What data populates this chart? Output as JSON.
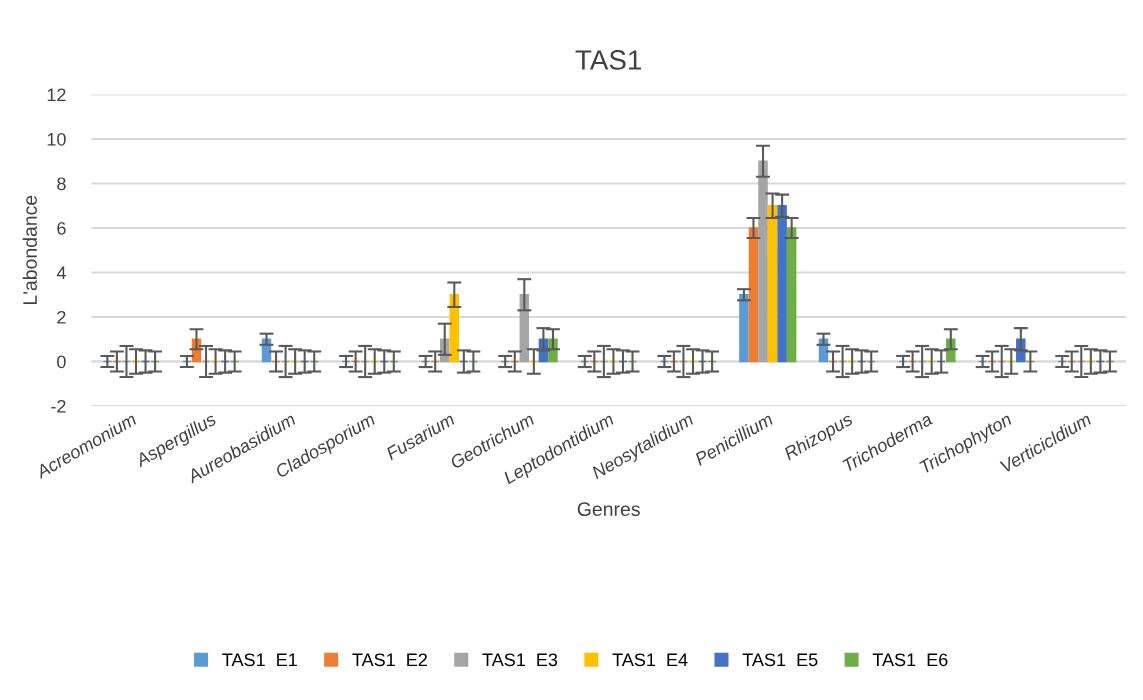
{
  "chart_data": {
    "type": "bar",
    "title": "TAS1",
    "xlabel": "Genres",
    "ylabel": "L'abondance",
    "categories": [
      "Acreomonium",
      "Aspergillus",
      "Aureobasidium",
      "Cladosporium",
      "Fusarium",
      "Geotrichum",
      "Leptodontidium",
      "Neosytalidium",
      "Penicillium",
      "Rhizopus",
      "Trichoderma",
      "Trichophyton",
      "Verticicldium"
    ],
    "series": [
      {
        "name": "TAS1  E1",
        "color": "#5b9bd5",
        "values": [
          0,
          0,
          1,
          0,
          0,
          0,
          0,
          0,
          3,
          1,
          0,
          0,
          0
        ],
        "errors": [
          0.25,
          0.25,
          0.25,
          0.25,
          0.25,
          0.25,
          0.25,
          0.25,
          0.25,
          0.25,
          0.25,
          0.25,
          0.25
        ]
      },
      {
        "name": "TAS1  E2",
        "color": "#ed7d31",
        "values": [
          0,
          1,
          0,
          0,
          0,
          0,
          0,
          0,
          6,
          0,
          0,
          0,
          0
        ],
        "errors": [
          0.45,
          0.45,
          0.45,
          0.45,
          0.45,
          0.45,
          0.45,
          0.45,
          0.45,
          0.45,
          0.45,
          0.45,
          0.45
        ]
      },
      {
        "name": "TAS1  E3",
        "color": "#a5a5a5",
        "values": [
          0,
          0,
          0,
          0,
          1,
          3,
          0,
          0,
          9,
          0,
          0,
          0,
          0
        ],
        "errors": [
          0.7,
          0.7,
          0.7,
          0.7,
          0.7,
          0.7,
          0.7,
          0.7,
          0.7,
          0.7,
          0.7,
          0.7,
          0.7
        ]
      },
      {
        "name": "TAS1  E4",
        "color": "#ffc000",
        "values": [
          0,
          0,
          0,
          0,
          3,
          0,
          0,
          0,
          7,
          0,
          0,
          0,
          0
        ],
        "errors": [
          0.55,
          0.55,
          0.55,
          0.55,
          0.55,
          0.55,
          0.55,
          0.55,
          0.55,
          0.55,
          0.55,
          0.55,
          0.55
        ]
      },
      {
        "name": "TAS1  E5",
        "color": "#4472c4",
        "values": [
          0,
          0,
          0,
          0,
          0,
          1,
          0,
          0,
          7,
          0,
          0,
          1,
          0
        ],
        "errors": [
          0.5,
          0.5,
          0.5,
          0.5,
          0.5,
          0.5,
          0.5,
          0.5,
          0.5,
          0.5,
          0.5,
          0.5,
          0.5
        ]
      },
      {
        "name": "TAS1  E6",
        "color": "#70ad47",
        "values": [
          0,
          0,
          0,
          0,
          0,
          1,
          0,
          0,
          6,
          0,
          1,
          0,
          0
        ],
        "errors": [
          0.45,
          0.45,
          0.45,
          0.45,
          0.45,
          0.45,
          0.45,
          0.45,
          0.45,
          0.45,
          0.45,
          0.45,
          0.45
        ]
      }
    ],
    "ylim": [
      -2,
      12
    ],
    "yticks": [
      -2,
      0,
      2,
      4,
      6,
      8,
      10,
      12
    ],
    "grid": "y",
    "legend": "bottom"
  }
}
